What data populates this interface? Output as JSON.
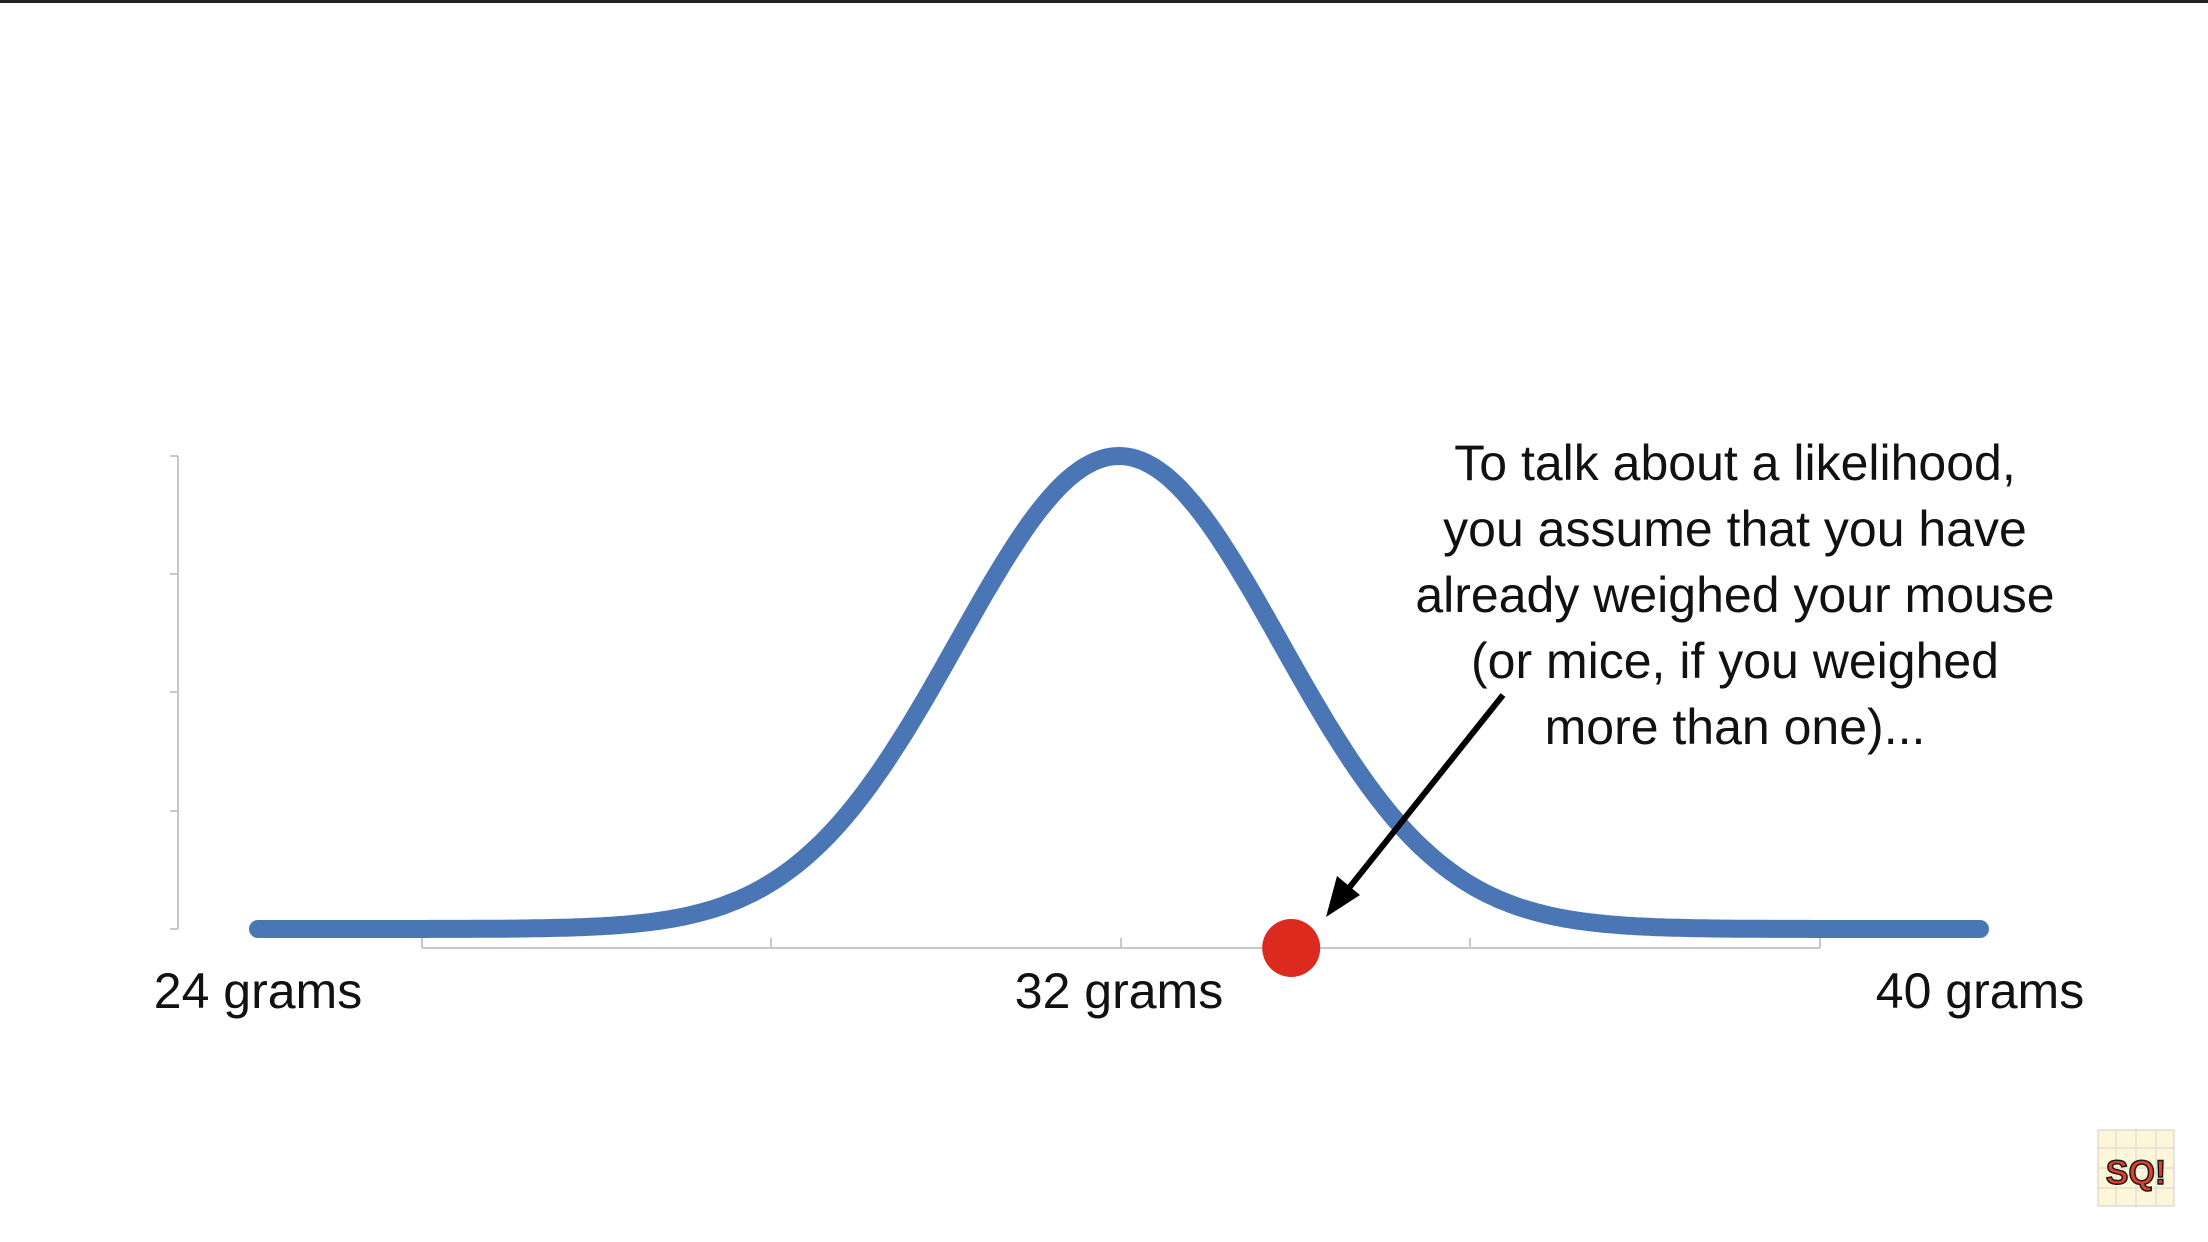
{
  "chart_data": {
    "type": "line",
    "title": "",
    "xlabel": "",
    "ylabel": "",
    "xlim": [
      24,
      40
    ],
    "tick_labels": [
      {
        "x": 24,
        "label": "24 grams"
      },
      {
        "x": 32,
        "label": "32 grams"
      },
      {
        "x": 40,
        "label": "40 grams"
      }
    ],
    "series": [
      {
        "distribution": "normal",
        "mean": 32,
        "sd": 1.5,
        "color": "#4a76b6"
      }
    ],
    "points": [
      {
        "x": 33.6,
        "color": "#dd2a1f"
      }
    ],
    "annotation": "To talk about a likelihood,\nyou assume that you have\nalready weighed your mouse\n(or mice, if you weighed\nmore than one)...",
    "grid": false,
    "legend": "none"
  },
  "logo": {
    "text": "SQ!"
  }
}
